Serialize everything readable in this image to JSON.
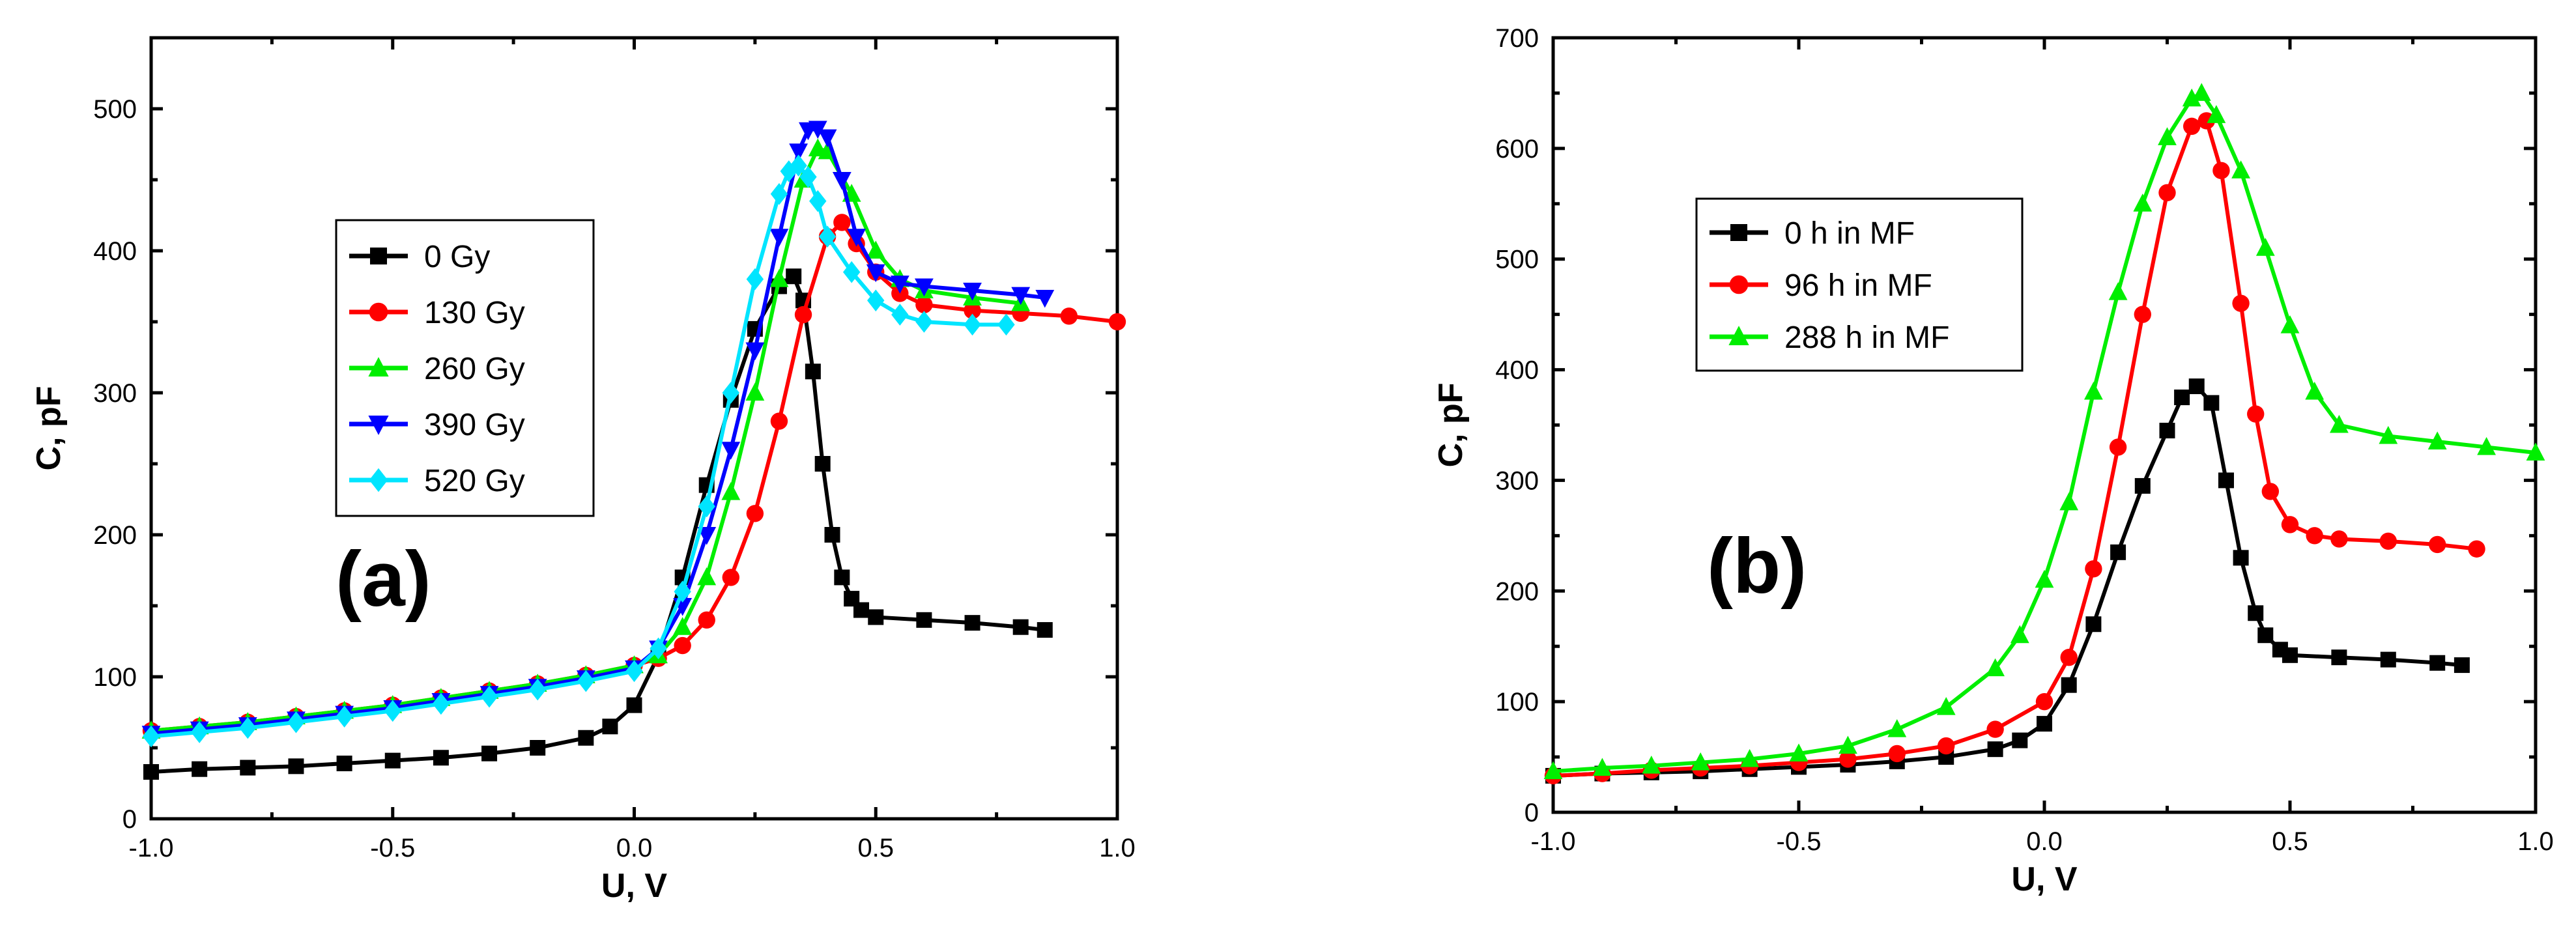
{
  "chart_data": [
    {
      "type": "line",
      "panel_label": "(a)",
      "xlabel": "U, V",
      "ylabel": "C, pF",
      "xlim": [
        -1.0,
        1.0
      ],
      "ylim": [
        0,
        550
      ],
      "xticks": [
        -1.0,
        -0.5,
        0.0,
        0.5,
        1.0
      ],
      "xtick_labels": [
        "-1.0",
        "-0.5",
        "0.0",
        "0.5",
        "1.0"
      ],
      "yticks": [
        0,
        100,
        200,
        300,
        400,
        500
      ],
      "ytick_labels": [
        "0",
        "100",
        "200",
        "300",
        "400",
        "500"
      ],
      "legend_position": "center-left",
      "series": [
        {
          "name": "0 Gy",
          "color": "#000000",
          "marker": "square",
          "x": [
            -1.0,
            -0.9,
            -0.8,
            -0.7,
            -0.6,
            -0.5,
            -0.4,
            -0.3,
            -0.2,
            -0.1,
            -0.05,
            0.0,
            0.05,
            0.1,
            0.15,
            0.2,
            0.25,
            0.3,
            0.33,
            0.35,
            0.37,
            0.39,
            0.41,
            0.43,
            0.45,
            0.47,
            0.5,
            0.6,
            0.7,
            0.8,
            0.85
          ],
          "y": [
            33,
            35,
            36,
            37,
            39,
            41,
            43,
            46,
            50,
            57,
            65,
            80,
            115,
            170,
            235,
            295,
            345,
            375,
            382,
            365,
            315,
            250,
            200,
            170,
            155,
            147,
            142,
            140,
            138,
            135,
            133
          ]
        },
        {
          "name": "130 Gy",
          "color": "#ff0000",
          "marker": "circle",
          "x": [
            -1.0,
            -0.9,
            -0.8,
            -0.7,
            -0.6,
            -0.5,
            -0.4,
            -0.3,
            -0.2,
            -0.1,
            0.0,
            0.05,
            0.1,
            0.15,
            0.2,
            0.25,
            0.3,
            0.35,
            0.4,
            0.43,
            0.46,
            0.5,
            0.55,
            0.6,
            0.7,
            0.8,
            0.9,
            1.0
          ],
          "y": [
            62,
            65,
            68,
            72,
            76,
            80,
            85,
            90,
            95,
            101,
            108,
            113,
            122,
            140,
            170,
            215,
            280,
            355,
            410,
            420,
            405,
            385,
            370,
            362,
            358,
            356,
            354,
            350
          ]
        },
        {
          "name": "260 Gy",
          "color": "#00ee00",
          "marker": "triangle-up",
          "x": [
            -1.0,
            -0.9,
            -0.8,
            -0.7,
            -0.6,
            -0.5,
            -0.4,
            -0.3,
            -0.2,
            -0.1,
            0.0,
            0.05,
            0.1,
            0.15,
            0.2,
            0.25,
            0.3,
            0.35,
            0.38,
            0.4,
            0.45,
            0.5,
            0.55,
            0.6,
            0.7,
            0.8
          ],
          "y": [
            62,
            65,
            68,
            72,
            76,
            80,
            85,
            90,
            95,
            101,
            108,
            115,
            135,
            170,
            230,
            300,
            380,
            450,
            472,
            470,
            440,
            400,
            380,
            372,
            367,
            363
          ]
        },
        {
          "name": "390 Gy",
          "color": "#0000ff",
          "marker": "triangle-down",
          "x": [
            -1.0,
            -0.9,
            -0.8,
            -0.7,
            -0.6,
            -0.5,
            -0.4,
            -0.3,
            -0.2,
            -0.1,
            0.0,
            0.05,
            0.1,
            0.15,
            0.2,
            0.25,
            0.3,
            0.34,
            0.36,
            0.38,
            0.4,
            0.43,
            0.46,
            0.5,
            0.55,
            0.6,
            0.7,
            0.8,
            0.85
          ],
          "y": [
            60,
            63,
            66,
            70,
            74,
            78,
            83,
            88,
            93,
            99,
            106,
            120,
            150,
            200,
            260,
            330,
            410,
            470,
            485,
            486,
            480,
            450,
            410,
            385,
            377,
            375,
            372,
            369,
            367
          ]
        },
        {
          "name": "520 Gy",
          "color": "#00e5ff",
          "marker": "diamond",
          "x": [
            -1.0,
            -0.9,
            -0.8,
            -0.7,
            -0.6,
            -0.5,
            -0.4,
            -0.3,
            -0.2,
            -0.1,
            0.0,
            0.05,
            0.1,
            0.15,
            0.2,
            0.25,
            0.3,
            0.32,
            0.34,
            0.36,
            0.38,
            0.4,
            0.45,
            0.5,
            0.55,
            0.6,
            0.7,
            0.77
          ],
          "y": [
            58,
            61,
            64,
            68,
            72,
            76,
            81,
            86,
            91,
            97,
            104,
            120,
            160,
            220,
            300,
            380,
            440,
            456,
            460,
            452,
            435,
            410,
            385,
            365,
            355,
            350,
            348,
            348
          ]
        }
      ]
    },
    {
      "type": "line",
      "panel_label": "(b)",
      "xlabel": "U, V",
      "ylabel": "C, pF",
      "xlim": [
        -1.0,
        1.0
      ],
      "ylim": [
        0,
        700
      ],
      "xticks": [
        -1.0,
        -0.5,
        0.0,
        0.5,
        1.0
      ],
      "xtick_labels": [
        "-1.0",
        "-0.5",
        "0.0",
        "0.5",
        "1.0"
      ],
      "yticks": [
        0,
        100,
        200,
        300,
        400,
        500,
        600,
        700
      ],
      "ytick_labels": [
        "0",
        "100",
        "200",
        "300",
        "400",
        "500",
        "600",
        "700"
      ],
      "legend_position": "top-left",
      "series": [
        {
          "name": "0 h in MF",
          "color": "#000000",
          "marker": "square",
          "x": [
            -1.0,
            -0.9,
            -0.8,
            -0.7,
            -0.6,
            -0.5,
            -0.4,
            -0.3,
            -0.2,
            -0.1,
            -0.05,
            0.0,
            0.05,
            0.1,
            0.15,
            0.2,
            0.25,
            0.28,
            0.31,
            0.34,
            0.37,
            0.4,
            0.43,
            0.45,
            0.48,
            0.5,
            0.6,
            0.7,
            0.8,
            0.85
          ],
          "y": [
            33,
            35,
            36,
            37,
            39,
            41,
            43,
            46,
            50,
            57,
            65,
            80,
            115,
            170,
            235,
            295,
            345,
            375,
            385,
            370,
            300,
            230,
            180,
            160,
            147,
            142,
            140,
            138,
            135,
            133
          ]
        },
        {
          "name": "96 h in MF",
          "color": "#ff0000",
          "marker": "circle",
          "x": [
            -1.0,
            -0.9,
            -0.8,
            -0.7,
            -0.6,
            -0.5,
            -0.4,
            -0.3,
            -0.2,
            -0.1,
            0.0,
            0.05,
            0.1,
            0.15,
            0.2,
            0.25,
            0.3,
            0.33,
            0.36,
            0.4,
            0.43,
            0.46,
            0.5,
            0.55,
            0.6,
            0.7,
            0.8,
            0.88
          ],
          "y": [
            33,
            35,
            38,
            40,
            42,
            45,
            48,
            53,
            60,
            75,
            100,
            140,
            220,
            330,
            450,
            560,
            620,
            625,
            580,
            460,
            360,
            290,
            260,
            250,
            247,
            245,
            242,
            238
          ]
        },
        {
          "name": "288 h in MF",
          "color": "#00ee00",
          "marker": "triangle-up",
          "x": [
            -1.0,
            -0.9,
            -0.8,
            -0.7,
            -0.6,
            -0.5,
            -0.4,
            -0.3,
            -0.2,
            -0.1,
            -0.05,
            0.0,
            0.05,
            0.1,
            0.15,
            0.2,
            0.25,
            0.3,
            0.32,
            0.35,
            0.4,
            0.45,
            0.5,
            0.55,
            0.6,
            0.7,
            0.8,
            0.9,
            1.0
          ],
          "y": [
            37,
            40,
            42,
            45,
            48,
            53,
            60,
            75,
            95,
            130,
            160,
            210,
            280,
            380,
            470,
            550,
            610,
            645,
            650,
            630,
            580,
            510,
            440,
            380,
            350,
            340,
            335,
            330,
            325
          ]
        }
      ]
    }
  ]
}
